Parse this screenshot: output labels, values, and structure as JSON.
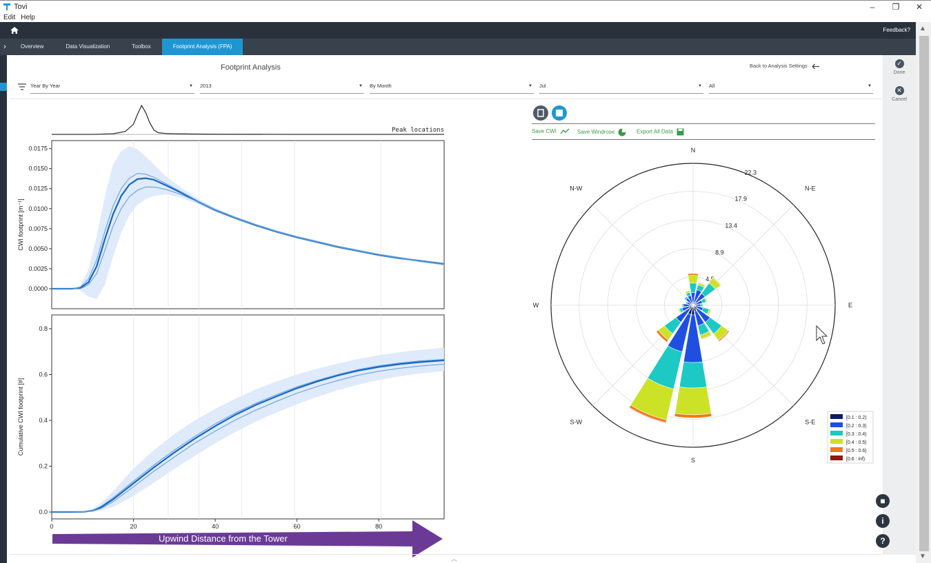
{
  "window": {
    "title": "Tovi",
    "controls": [
      "–",
      "❐",
      "✕"
    ]
  },
  "menu": [
    {
      "label": "Edit"
    },
    {
      "label": "Help"
    }
  ],
  "nav": {
    "feedback_label": "Feedback?",
    "home_icon": "home-icon"
  },
  "tabs": [
    {
      "label": "Overview",
      "active": false
    },
    {
      "label": "Data Visualization",
      "active": false
    },
    {
      "label": "Toolbox",
      "active": false
    },
    {
      "label": "Footprint Analysis (FPA)",
      "active": true
    }
  ],
  "page": {
    "title": "Footprint Analysis",
    "back_label": "Back to Analysis Settings"
  },
  "filters": [
    {
      "value": "Year By Year"
    },
    {
      "value": "2013"
    },
    {
      "value": "By Month"
    },
    {
      "value": "Jul"
    },
    {
      "value": "All"
    }
  ],
  "actions": {
    "done_label": "Done",
    "cancel_label": "Cancel"
  },
  "windrose_tools": {
    "save_cwi_label": "Save CWI",
    "save_windrose_label": "Save Windrose",
    "export_all_label": "Export All Data"
  },
  "annotation": {
    "arrow_text": "Upwind Distance from the Tower"
  },
  "colors": {
    "accent": "#1e96d3",
    "nav_dark": "#29323c",
    "tab_bar": "#38424d",
    "link_green": "#3a9a4a",
    "band": "#dde9fb",
    "line_main": "#1565c0",
    "line_light": "#5b9bd5",
    "arrow_purple": "#6b3a96"
  },
  "chart_data": [
    {
      "type": "line",
      "title": "Peak locations",
      "x": [
        0,
        5,
        10,
        15,
        18,
        20,
        21,
        22,
        23,
        24,
        25,
        26,
        28,
        30,
        35,
        40,
        60,
        80,
        96
      ],
      "series": [
        {
          "values": [
            0,
            0,
            0,
            0.02,
            0.1,
            0.35,
            0.7,
            1.0,
            0.75,
            0.4,
            0.15,
            0.06,
            0.03,
            0.02,
            0.01,
            0.005,
            0,
            0,
            0
          ]
        }
      ],
      "xlim": [
        0,
        96
      ]
    },
    {
      "type": "line",
      "ylabel": "CWI footprint [m⁻¹]",
      "xlim": [
        0,
        96
      ],
      "ylim": [
        -0.0025,
        0.0185
      ],
      "yticks": [
        0.0,
        0.0025,
        0.005,
        0.0075,
        0.01,
        0.0125,
        0.015,
        0.0175
      ],
      "yticklabels": [
        "0.0000",
        "0.0025",
        "0.0050",
        "0.0075",
        "0.0100",
        "0.0125",
        "0.0150",
        "0.0175"
      ],
      "x": [
        0,
        5,
        7,
        9,
        11,
        13,
        15,
        17,
        19,
        21,
        23,
        25,
        28,
        32,
        36,
        40,
        45,
        50,
        55,
        60,
        65,
        70,
        75,
        80,
        85,
        90,
        96
      ],
      "series": [
        {
          "values": [
            0,
            0,
            0.0001,
            0.0008,
            0.0028,
            0.0062,
            0.0093,
            0.0116,
            0.013,
            0.0137,
            0.0138,
            0.0136,
            0.0129,
            0.0119,
            0.0108,
            0.0098,
            0.0088,
            0.0079,
            0.0071,
            0.0064,
            0.0058,
            0.0052,
            0.0047,
            0.0042,
            0.0038,
            0.0035,
            0.0031
          ]
        },
        {
          "values": [
            0,
            0,
            0.0002,
            0.0012,
            0.0036,
            0.0072,
            0.0103,
            0.0125,
            0.0138,
            0.0144,
            0.0143,
            0.0139,
            0.0131,
            0.012,
            0.0109,
            0.0099,
            0.0089,
            0.008,
            0.0072,
            0.0065,
            0.0059,
            0.0053,
            0.0048,
            0.0043,
            0.0039,
            0.0035,
            0.0031
          ]
        },
        {
          "values": [
            0,
            0,
            0,
            0.0005,
            0.0019,
            0.0048,
            0.0078,
            0.01,
            0.0115,
            0.0123,
            0.0127,
            0.0127,
            0.0124,
            0.0117,
            0.0108,
            0.0098,
            0.0088,
            0.0079,
            0.0071,
            0.0064,
            0.0058,
            0.0052,
            0.0047,
            0.0042,
            0.0038,
            0.0034,
            0.003
          ]
        }
      ],
      "band_upper": [
        0,
        0,
        0.0004,
        0.0024,
        0.0065,
        0.0115,
        0.0155,
        0.0172,
        0.0178,
        0.0174,
        0.0165,
        0.0155,
        0.014,
        0.0125,
        0.0112,
        0.0101,
        0.009,
        0.0081,
        0.0073,
        0.0066,
        0.006,
        0.0054,
        0.0049,
        0.0044,
        0.004,
        0.0036,
        0.0032
      ],
      "band_lower": [
        0,
        0,
        -0.0002,
        -0.001,
        -0.0013,
        0.0005,
        0.004,
        0.007,
        0.0092,
        0.0105,
        0.0112,
        0.0116,
        0.0118,
        0.0113,
        0.0105,
        0.0096,
        0.0087,
        0.0078,
        0.007,
        0.0063,
        0.0057,
        0.0051,
        0.0046,
        0.0041,
        0.0037,
        0.0033,
        0.0029
      ]
    },
    {
      "type": "line",
      "ylabel": "Cumulative CWI footprint [#]",
      "xlim": [
        0,
        96
      ],
      "ylim": [
        -0.03,
        0.86
      ],
      "yticks": [
        0.0,
        0.2,
        0.4,
        0.6,
        0.8
      ],
      "yticklabels": [
        "0.0",
        "0.2",
        "0.4",
        "0.6",
        "0.8"
      ],
      "xticks": [
        0,
        20,
        40,
        60,
        80
      ],
      "xticklabels": [
        "0",
        "20",
        "40",
        "60",
        "80"
      ],
      "x": [
        0,
        5,
        8,
        10,
        12,
        15,
        20,
        25,
        30,
        35,
        40,
        45,
        50,
        55,
        60,
        65,
        70,
        75,
        80,
        85,
        90,
        96
      ],
      "series": [
        {
          "values": [
            0,
            0,
            0.001,
            0.006,
            0.02,
            0.055,
            0.125,
            0.195,
            0.26,
            0.32,
            0.375,
            0.425,
            0.468,
            0.505,
            0.54,
            0.57,
            0.596,
            0.617,
            0.633,
            0.645,
            0.654,
            0.662
          ]
        },
        {
          "values": [
            0,
            0,
            0.002,
            0.008,
            0.024,
            0.062,
            0.135,
            0.205,
            0.27,
            0.33,
            0.385,
            0.433,
            0.475,
            0.512,
            0.546,
            0.575,
            0.6,
            0.622,
            0.638,
            0.65,
            0.659,
            0.666
          ]
        },
        {
          "values": [
            0,
            0,
            0.001,
            0.004,
            0.015,
            0.045,
            0.11,
            0.178,
            0.24,
            0.3,
            0.353,
            0.402,
            0.445,
            0.483,
            0.518,
            0.548,
            0.574,
            0.597,
            0.614,
            0.627,
            0.637,
            0.645
          ]
        }
      ],
      "band_upper": [
        0,
        0,
        0.004,
        0.014,
        0.038,
        0.09,
        0.19,
        0.27,
        0.34,
        0.4,
        0.45,
        0.495,
        0.535,
        0.57,
        0.6,
        0.626,
        0.648,
        0.668,
        0.684,
        0.697,
        0.707,
        0.717
      ],
      "band_lower": [
        0,
        0,
        0,
        0.001,
        0.006,
        0.022,
        0.07,
        0.128,
        0.188,
        0.245,
        0.3,
        0.35,
        0.395,
        0.434,
        0.47,
        0.503,
        0.532,
        0.556,
        0.576,
        0.592,
        0.604,
        0.615
      ]
    },
    {
      "type": "windrose",
      "directions": [
        "N",
        "N-E",
        "E",
        "S-E",
        "S",
        "S-W",
        "W",
        "N-W"
      ],
      "radial_ticks": [
        4.5,
        8.9,
        13.4,
        17.9,
        22.3
      ],
      "rmax": 22.3,
      "legend": [
        "[0.1 : 0.2)",
        "[0.2 : 0.3)",
        "[0.3 : 0.4)",
        "[0.4 : 0.5)",
        "[0.5 : 0.6)",
        "[0.6 : inf)"
      ],
      "legend_colors": [
        "#0b1a63",
        "#1f4fe0",
        "#1cc9c4",
        "#cbe226",
        "#f07a1a",
        "#8b1a10"
      ],
      "sectors_deg": [
        0,
        22.5,
        45,
        67.5,
        90,
        112.5,
        135,
        157.5,
        180,
        202.5,
        225,
        247.5,
        270,
        292.5,
        315,
        337.5
      ],
      "stacks": [
        [
          0.5,
          1.5,
          1.5,
          1.2,
          0.3,
          0
        ],
        [
          0.5,
          2.0,
          0.8,
          0.3,
          0.1,
          0
        ],
        [
          0.5,
          1.8,
          2.0,
          1.0,
          0.1,
          0
        ],
        [
          0.5,
          1.0,
          0.6,
          0.2,
          0,
          0
        ],
        [
          0.4,
          0.8,
          0.3,
          0.1,
          0,
          0
        ],
        [
          0.4,
          1.2,
          1.0,
          0.3,
          0,
          0
        ],
        [
          0.8,
          2.5,
          2.2,
          1.3,
          0.2,
          0
        ],
        [
          1.0,
          2.3,
          1.5,
          0.6,
          0.1,
          0
        ],
        [
          1.5,
          7.5,
          4.0,
          4.2,
          0.5,
          0
        ],
        [
          1.5,
          6.0,
          6.0,
          5.0,
          0.4,
          0.1
        ],
        [
          0.8,
          2.5,
          2.2,
          1.2,
          0.4,
          0
        ],
        [
          0.6,
          1.2,
          0.4,
          0.2,
          0,
          0
        ],
        [
          0.5,
          1.0,
          0.2,
          0,
          0,
          0
        ],
        [
          0.4,
          0.6,
          0.2,
          0,
          0,
          0
        ],
        [
          0.4,
          1.0,
          0.3,
          0,
          0,
          0
        ],
        [
          0.4,
          1.2,
          0.5,
          0.3,
          0,
          0
        ]
      ]
    }
  ]
}
